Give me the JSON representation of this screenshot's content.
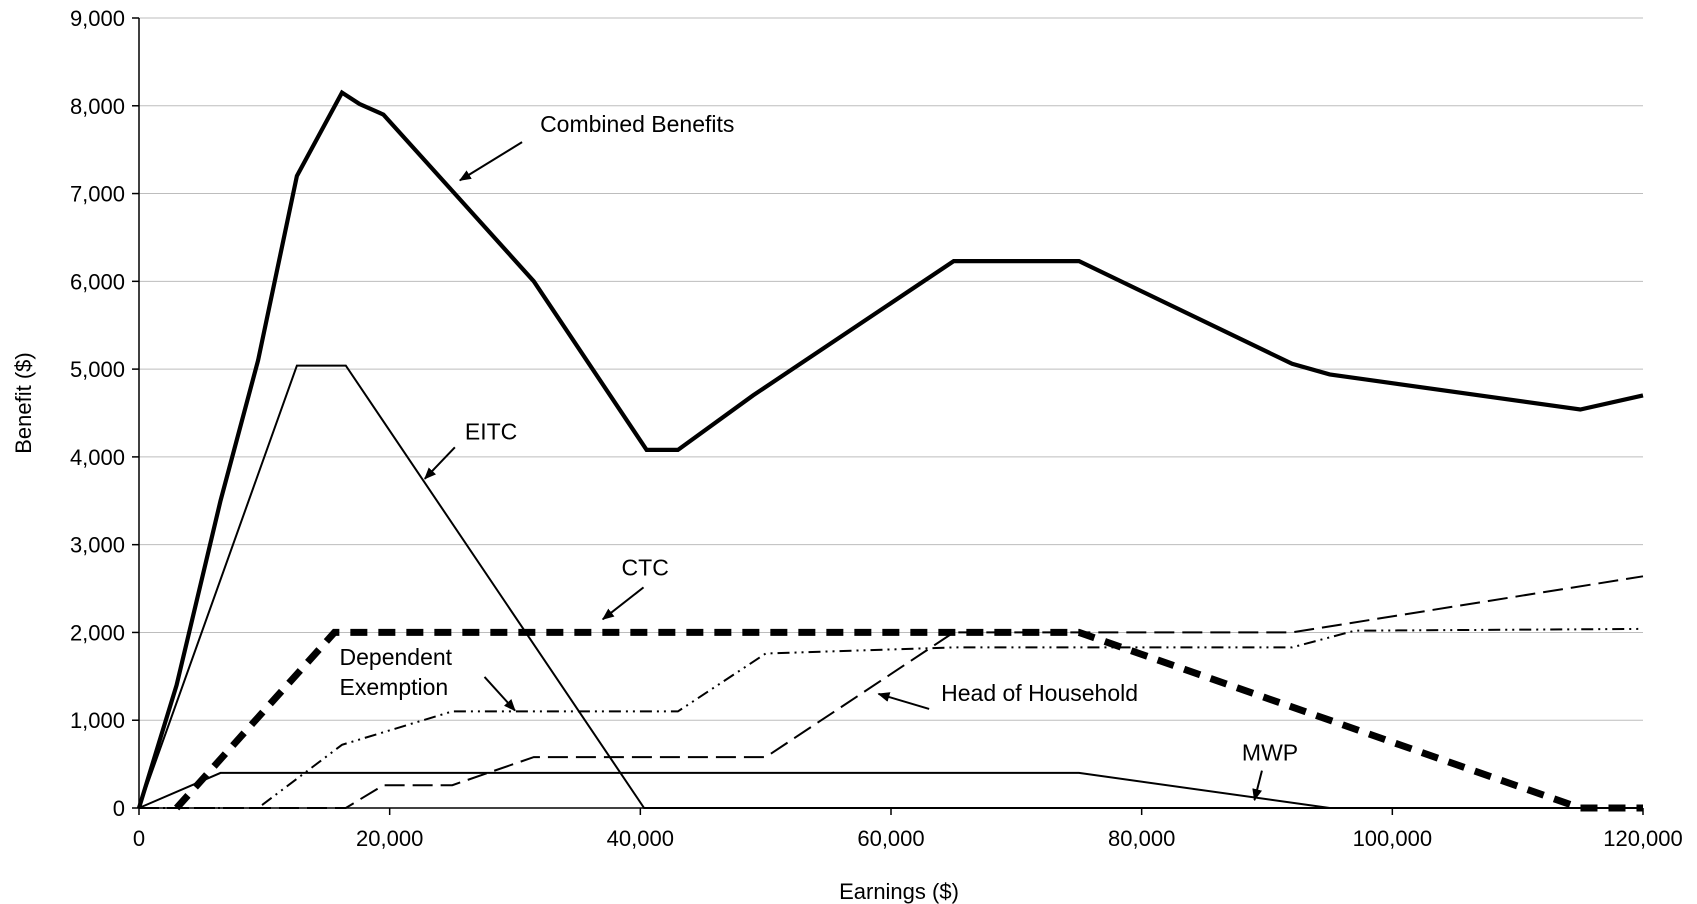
{
  "chart_data": {
    "type": "line",
    "title": "",
    "xlabel": "Earnings ($)",
    "ylabel": "Benefit ($)",
    "xlim": [
      0,
      120000
    ],
    "ylim": [
      0,
      9000
    ],
    "x_ticks": [
      0,
      20000,
      40000,
      60000,
      80000,
      100000,
      120000
    ],
    "x_tick_labels": [
      "0",
      "20,000",
      "40,000",
      "60,000",
      "80,000",
      "100,000",
      "120,000"
    ],
    "y_ticks": [
      0,
      1000,
      2000,
      3000,
      4000,
      5000,
      6000,
      7000,
      8000,
      9000
    ],
    "y_tick_labels": [
      "0",
      "1,000",
      "2,000",
      "3,000",
      "4,000",
      "5,000",
      "6,000",
      "7,000",
      "8,000",
      "9,000"
    ],
    "grid": "horizontal",
    "legend": "none",
    "series": [
      {
        "name": "Combined Benefits",
        "style": "solid-thick",
        "points": [
          [
            0,
            0
          ],
          [
            3000,
            1400
          ],
          [
            6500,
            3500
          ],
          [
            9500,
            5100
          ],
          [
            12600,
            7200
          ],
          [
            16200,
            8150
          ],
          [
            17600,
            8020
          ],
          [
            19500,
            7900
          ],
          [
            25500,
            6950
          ],
          [
            31500,
            6000
          ],
          [
            40500,
            4080
          ],
          [
            43000,
            4080
          ],
          [
            49000,
            4700
          ],
          [
            65000,
            6230
          ],
          [
            75000,
            6230
          ],
          [
            92000,
            5060
          ],
          [
            95000,
            4940
          ],
          [
            115000,
            4540
          ],
          [
            120000,
            4700
          ]
        ]
      },
      {
        "name": "EITC",
        "style": "solid-thin",
        "points": [
          [
            0,
            0
          ],
          [
            12600,
            5040
          ],
          [
            16500,
            5040
          ],
          [
            40300,
            0
          ],
          [
            120000,
            0
          ]
        ]
      },
      {
        "name": "CTC",
        "style": "thick-dash",
        "points": [
          [
            3000,
            0
          ],
          [
            15600,
            2000
          ],
          [
            75000,
            2000
          ],
          [
            115000,
            0
          ],
          [
            120000,
            0
          ]
        ]
      },
      {
        "name": "Dependent Exemption",
        "style": "dash-dot-dot",
        "points": [
          [
            0,
            0
          ],
          [
            9500,
            0
          ],
          [
            16200,
            720
          ],
          [
            25000,
            1100
          ],
          [
            43000,
            1100
          ],
          [
            50000,
            1760
          ],
          [
            65000,
            1830
          ],
          [
            92000,
            1830
          ],
          [
            97000,
            2020
          ],
          [
            120000,
            2040
          ]
        ]
      },
      {
        "name": "Head of Household",
        "style": "long-dash",
        "points": [
          [
            0,
            0
          ],
          [
            16500,
            0
          ],
          [
            19500,
            260
          ],
          [
            25000,
            260
          ],
          [
            31500,
            580
          ],
          [
            50000,
            580
          ],
          [
            65000,
            2000
          ],
          [
            92000,
            2000
          ],
          [
            120000,
            2640
          ]
        ]
      },
      {
        "name": "MWP",
        "style": "solid-thin",
        "points": [
          [
            0,
            0
          ],
          [
            6500,
            400
          ],
          [
            75000,
            400
          ],
          [
            95000,
            0
          ],
          [
            120000,
            0
          ]
        ]
      }
    ],
    "annotations": [
      {
        "text": "Combined Benefits",
        "anchor": [
          32000,
          7700
        ],
        "arrow_to": [
          25600,
          7150
        ]
      },
      {
        "text": "EITC",
        "anchor": [
          26000,
          4200
        ],
        "arrow_to": [
          22800,
          3750
        ]
      },
      {
        "text": "CTC",
        "anchor": [
          38500,
          2650
        ],
        "arrow_to": [
          37000,
          2150
        ]
      },
      {
        "text": "Dependent Exemption",
        "lines": [
          "Dependent",
          "Exemption"
        ],
        "anchor": [
          16000,
          1630
        ],
        "arrow_to": [
          30000,
          1110
        ]
      },
      {
        "text": "Head of Household",
        "anchor": [
          64000,
          1220
        ],
        "arrow_to": [
          59000,
          1300
        ]
      },
      {
        "text": "MWP",
        "anchor": [
          88000,
          540
        ],
        "arrow_to": [
          89000,
          90
        ]
      }
    ]
  }
}
